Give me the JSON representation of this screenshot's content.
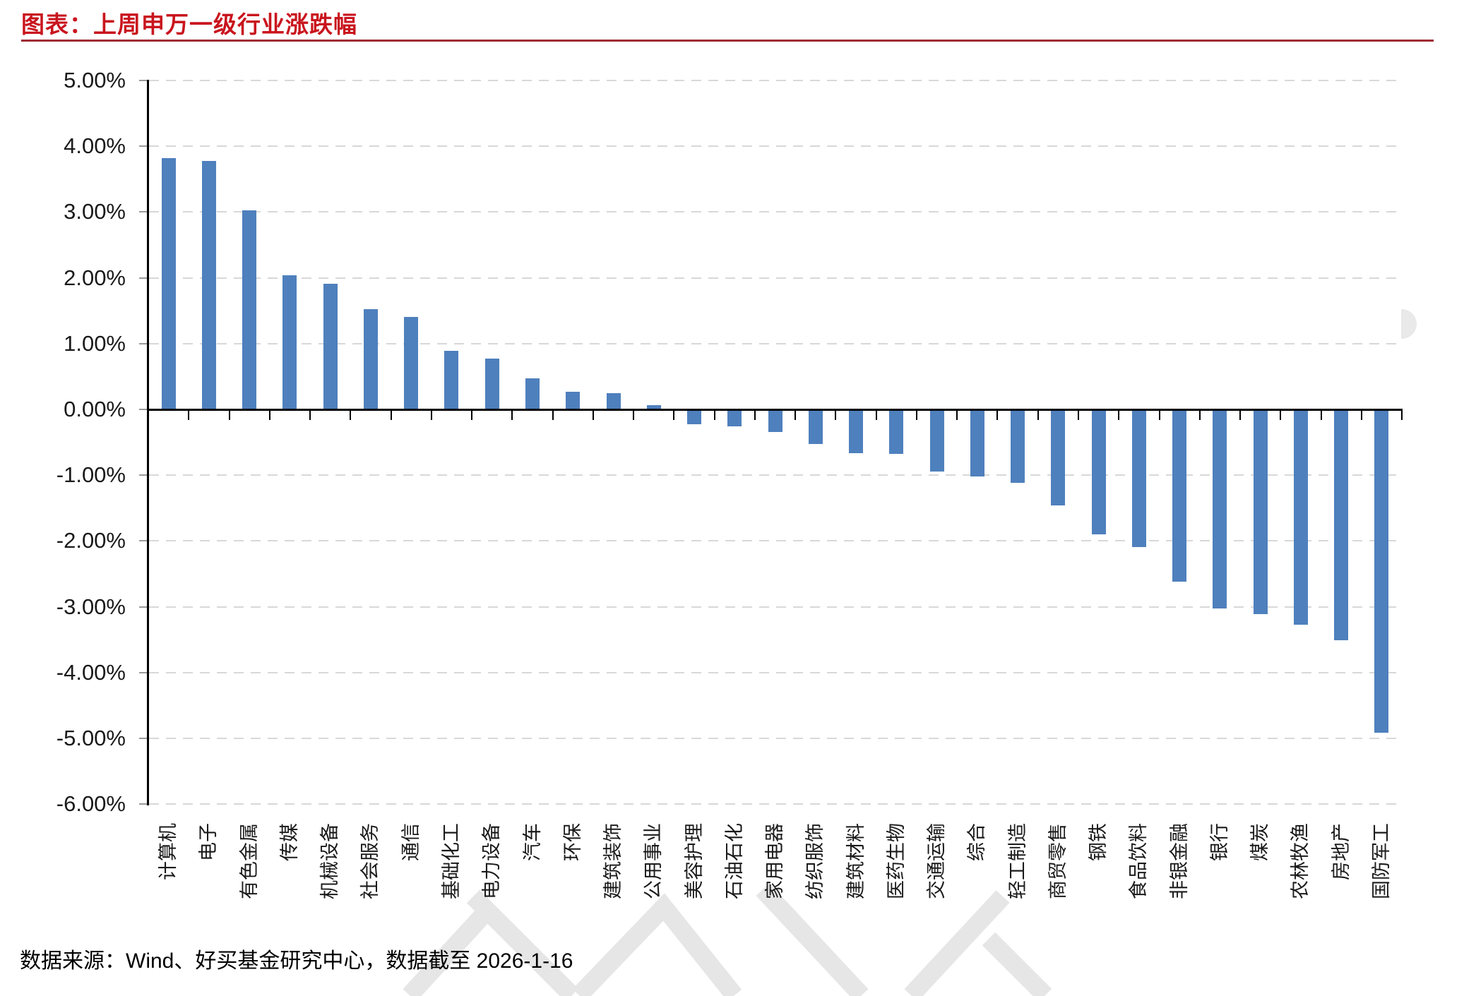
{
  "title": "图表：上周申万一级行业涨跌幅",
  "source_note": "数据来源：Wind、好买基金研究中心，数据截至 2026-1-16",
  "colors": {
    "bar": "#4E80BD",
    "title_red": "#C9151E",
    "rule_red": "#9E2B33",
    "gridline": "#D8D8D8",
    "axis": "#000000",
    "watermark_gray": "#E6E6E6"
  },
  "chart_data": {
    "type": "bar",
    "title": "上周申万一级行业涨跌幅",
    "categories": [
      "计算机",
      "电子",
      "有色金属",
      "传媒",
      "机械设备",
      "社会服务",
      "通信",
      "基础化工",
      "电力设备",
      "汽车",
      "环保",
      "建筑装饰",
      "公用事业",
      "美容护理",
      "石油石化",
      "家用电器",
      "纺织服饰",
      "建筑材料",
      "医药生物",
      "交通运输",
      "综合",
      "轻工制造",
      "商贸零售",
      "钢铁",
      "食品饮料",
      "非银金融",
      "银行",
      "煤炭",
      "农林牧渔",
      "房地产",
      "国防军工"
    ],
    "values": [
      3.82,
      3.78,
      3.03,
      2.04,
      1.91,
      1.52,
      1.41,
      0.89,
      0.77,
      0.47,
      0.27,
      0.25,
      0.06,
      -0.22,
      -0.26,
      -0.34,
      -0.53,
      -0.66,
      -0.68,
      -0.94,
      -1.02,
      -1.11,
      -1.46,
      -1.9,
      -2.09,
      -2.62,
      -3.03,
      -3.11,
      -3.27,
      -3.51,
      -4.91
    ],
    "xlabel": "",
    "ylabel": "",
    "ylim": [
      -6,
      5
    ],
    "ytick_values": [
      5,
      4,
      3,
      2,
      1,
      0,
      -1,
      -2,
      -3,
      -4,
      -5,
      -6
    ],
    "ytick_labels": [
      "5.00%",
      "4.00%",
      "3.00%",
      "2.00%",
      "1.00%",
      "0.00%",
      "-1.00%",
      "-2.00%",
      "-3.00%",
      "-4.00%",
      "-5.00%",
      "-6.00%"
    ],
    "grid": "horizontal-dashed",
    "legend": "none",
    "bar_color": "#4E80BD"
  }
}
